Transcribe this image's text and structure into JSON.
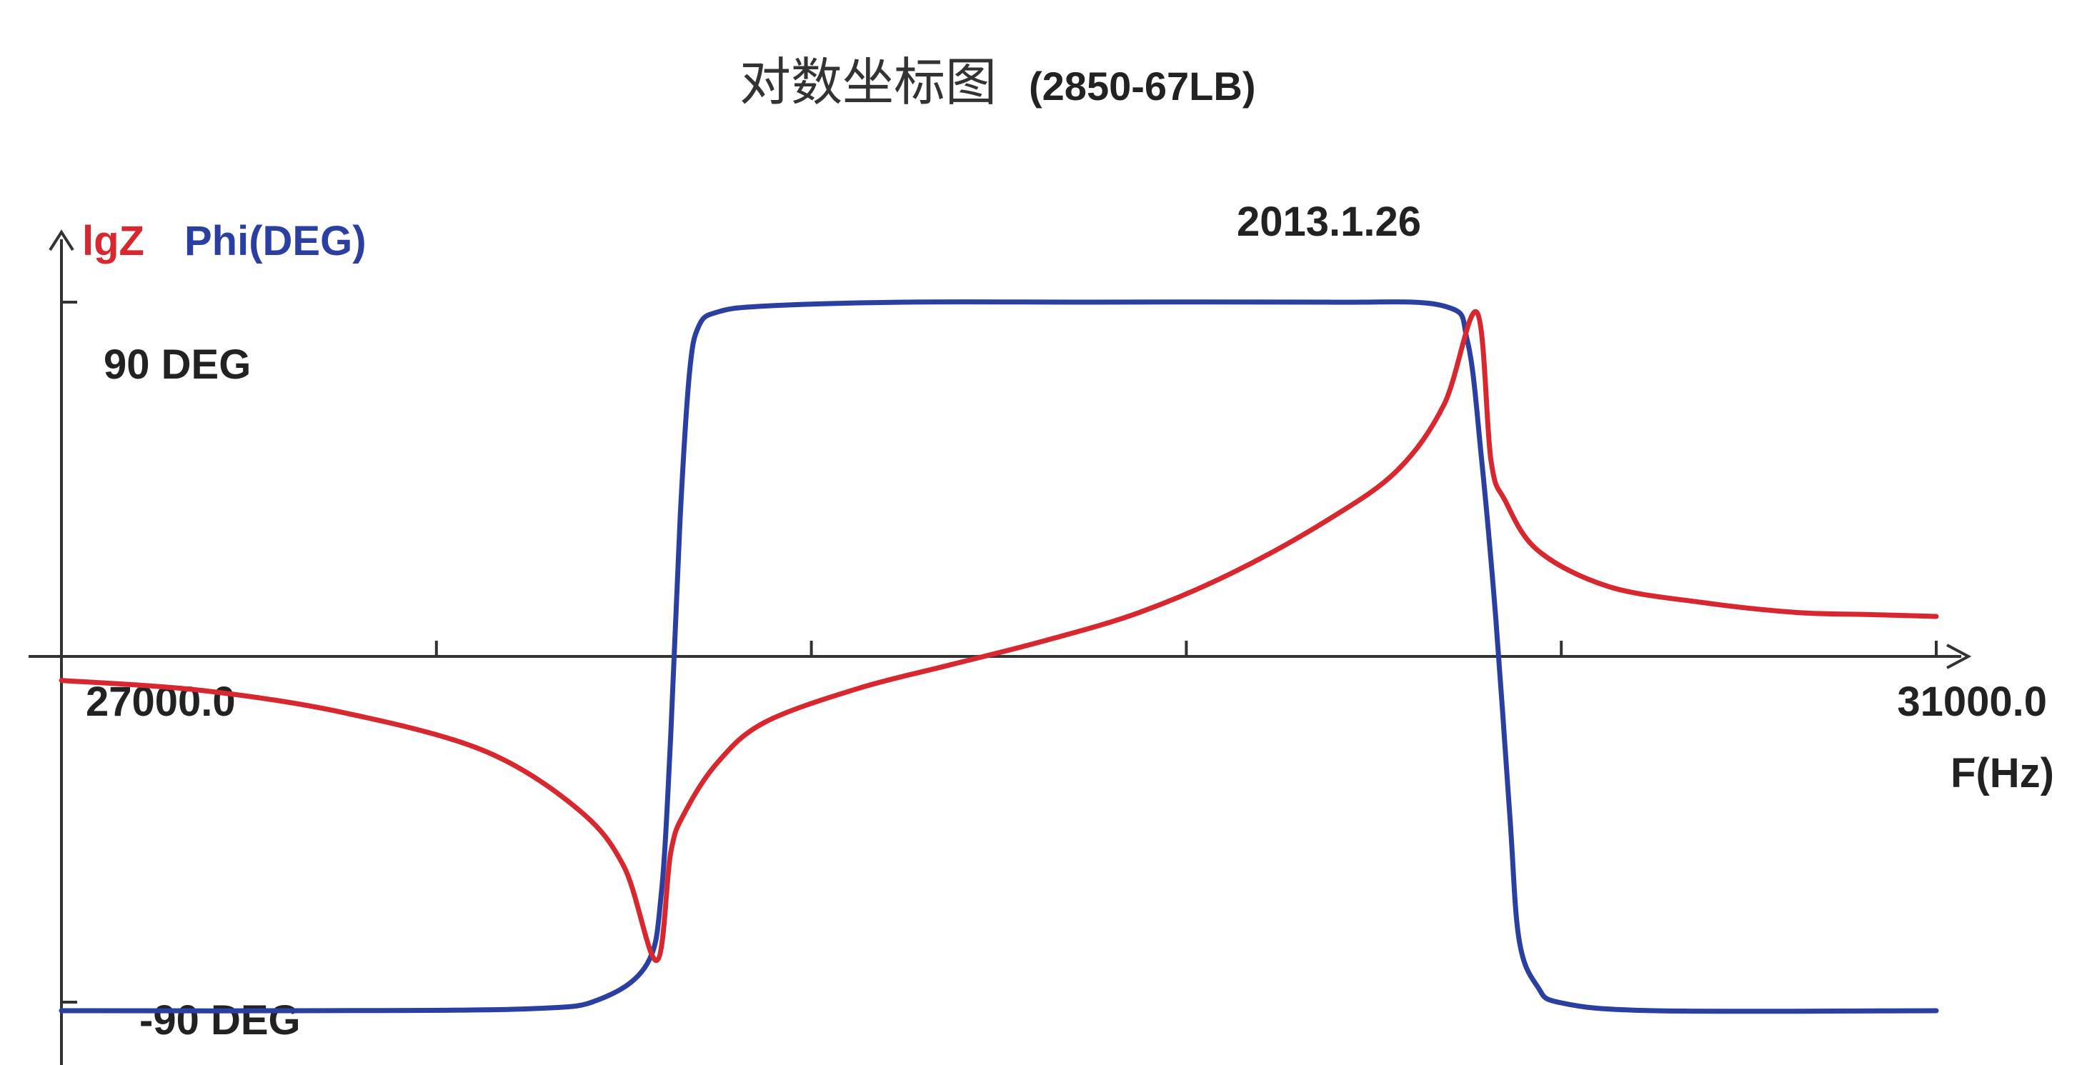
{
  "colors": {
    "background": "#ffffff",
    "axis": "#333333",
    "lgz": "#d8282f",
    "phi": "#2b3fa0",
    "text": "#222222"
  },
  "chart_data": {
    "type": "line",
    "title": "对数坐标图",
    "subtitle": "(2850-67LB)",
    "date_label": "2013.1.26",
    "xlabel": "F(Hz)",
    "xlim": [
      27000.0,
      31000.0
    ],
    "x_tick_labels": [
      "27000.0",
      "31000.0"
    ],
    "y_axis_labels": {
      "series_lgz": "lgZ",
      "series_phi": "Phi(DEG)",
      "top": "90 DEG",
      "bottom": "-90 DEG"
    },
    "phase_range": [
      -90,
      90
    ],
    "minor_ticks": 5,
    "grid": false,
    "series": [
      {
        "name": "lgZ",
        "color": "#d8282f",
        "unit": "relative (0 = axis)",
        "x": [
          27000,
          27300,
          27600,
          27900,
          28100,
          28200,
          28270,
          28300,
          28330,
          28400,
          28500,
          28700,
          28900,
          29100,
          29300,
          29500,
          29700,
          29850,
          29950,
          30020,
          30050,
          30080,
          30150,
          30300,
          30500,
          30700,
          30850,
          31000
        ],
        "values": [
          -0.12,
          -0.17,
          -0.28,
          -0.47,
          -0.76,
          -1.05,
          -1.52,
          -0.98,
          -0.78,
          -0.53,
          -0.33,
          -0.16,
          -0.04,
          0.08,
          0.22,
          0.42,
          0.68,
          0.93,
          1.26,
          1.72,
          0.98,
          0.78,
          0.53,
          0.35,
          0.27,
          0.22,
          0.21,
          0.2
        ]
      },
      {
        "name": "Phi",
        "color": "#2b3fa0",
        "unit": "DEG",
        "x": [
          27000,
          27500,
          28000,
          28150,
          28250,
          28280,
          28300,
          28320,
          28340,
          28360,
          28400,
          28500,
          28800,
          29200,
          29700,
          29950,
          30000,
          30030,
          30060,
          30090,
          30110,
          30150,
          30200,
          30400,
          31000
        ],
        "values": [
          -90,
          -90,
          -89.5,
          -87,
          -78,
          -60,
          -20,
          35,
          72,
          84,
          87.5,
          89,
          90,
          90,
          90,
          89,
          80,
          50,
          10,
          -40,
          -72,
          -84,
          -88,
          -90,
          -90
        ]
      }
    ]
  }
}
